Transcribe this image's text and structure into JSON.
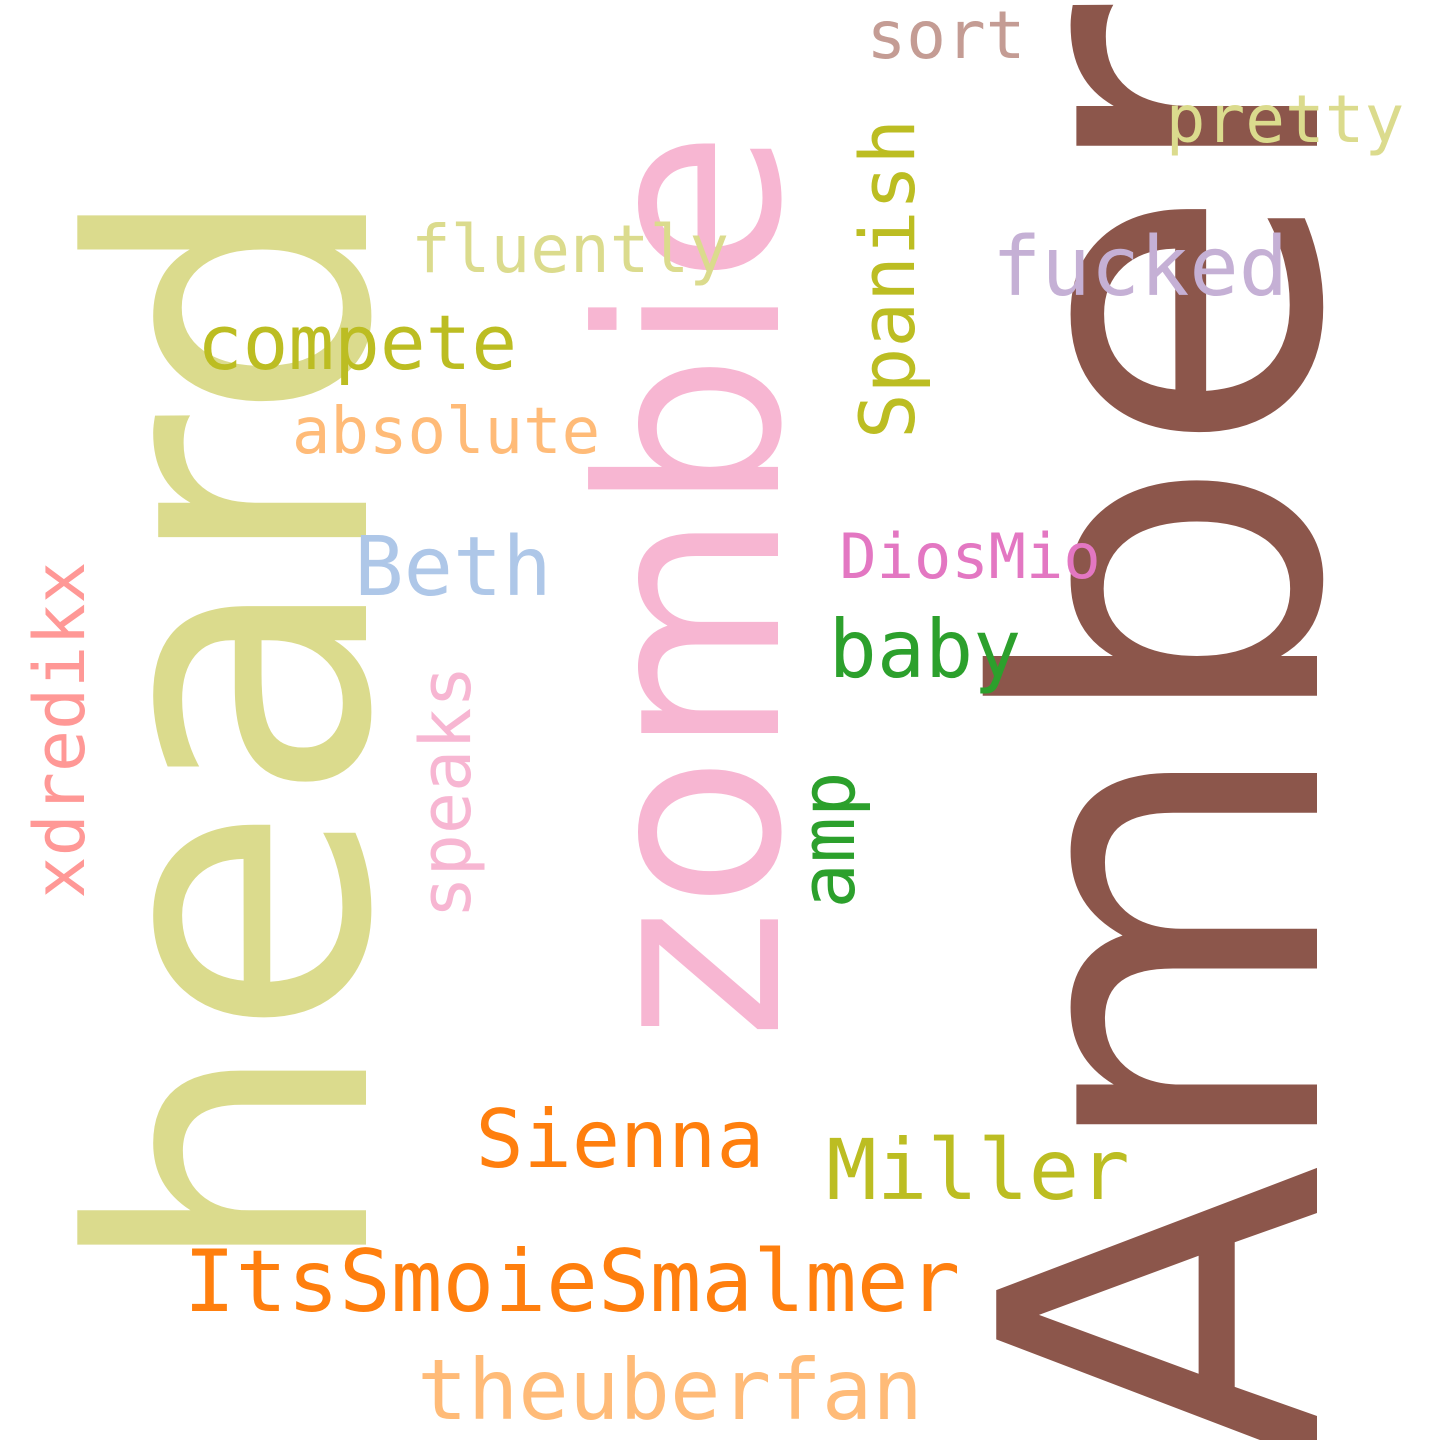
{
  "words": [
    {
      "text": "Amber",
      "color": "#8c564b",
      "orientation": "vertical"
    },
    {
      "text": "heard",
      "color": "#dbdb8d",
      "orientation": "vertical"
    },
    {
      "text": "zombie",
      "color": "#f7b6d2",
      "orientation": "vertical"
    },
    {
      "text": "ItsSmoieSmalmer",
      "color": "#ff7f0e",
      "orientation": "horizontal"
    },
    {
      "text": "theuberfan",
      "color": "#ffbb78",
      "orientation": "horizontal"
    },
    {
      "text": "Sienna",
      "color": "#ff7f0e",
      "orientation": "horizontal"
    },
    {
      "text": "Miller",
      "color": "#bcbd22",
      "orientation": "horizontal"
    },
    {
      "text": "compete",
      "color": "#bcbd22",
      "orientation": "horizontal"
    },
    {
      "text": "Spanish",
      "color": "#bcbd22",
      "orientation": "vertical"
    },
    {
      "text": "fucked",
      "color": "#c5b0d5",
      "orientation": "horizontal"
    },
    {
      "text": "fluently",
      "color": "#dbdb8d",
      "orientation": "horizontal"
    },
    {
      "text": "absolute",
      "color": "#ffbb78",
      "orientation": "horizontal"
    },
    {
      "text": "Beth",
      "color": "#aec7e8",
      "orientation": "horizontal"
    },
    {
      "text": "DiosMio",
      "color": "#e377c2",
      "orientation": "horizontal"
    },
    {
      "text": "baby",
      "color": "#2ca02c",
      "orientation": "horizontal"
    },
    {
      "text": "amp",
      "color": "#2ca02c",
      "orientation": "vertical"
    },
    {
      "text": "speaks",
      "color": "#f7b6d2",
      "orientation": "vertical"
    },
    {
      "text": "xdredikx",
      "color": "#ff9896",
      "orientation": "vertical"
    },
    {
      "text": "sort",
      "color": "#c49c94",
      "orientation": "horizontal"
    },
    {
      "text": "pretty",
      "color": "#dbdb8d",
      "orientation": "horizontal"
    }
  ]
}
